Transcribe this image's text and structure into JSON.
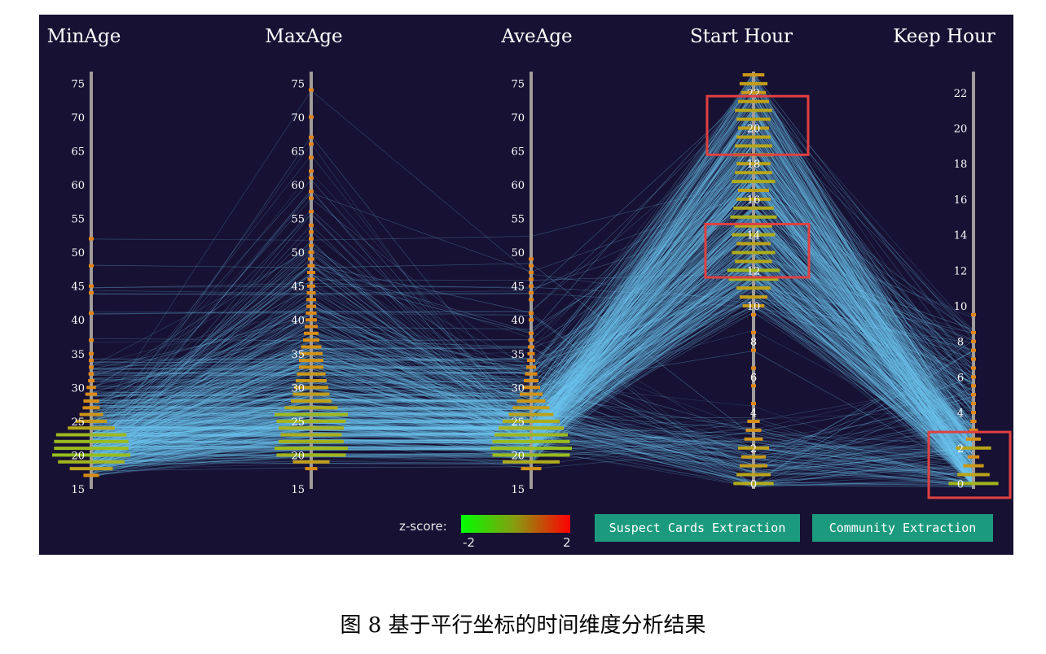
{
  "chart_data": {
    "type": "parallel-coordinates",
    "axes": [
      {
        "name": "MinAge",
        "range": [
          15,
          76
        ],
        "ticks": [
          15,
          20,
          25,
          30,
          35,
          40,
          45,
          50,
          55,
          60,
          65,
          70,
          75
        ],
        "tick_side": "left"
      },
      {
        "name": "MaxAge",
        "range": [
          15,
          76
        ],
        "ticks": [
          15,
          20,
          25,
          30,
          35,
          40,
          45,
          50,
          55,
          60,
          65,
          70,
          75
        ],
        "tick_side": "left"
      },
      {
        "name": "AveAge",
        "range": [
          15,
          76
        ],
        "ticks": [
          15,
          20,
          25,
          30,
          35,
          40,
          45,
          50,
          55,
          60,
          65,
          70,
          75
        ],
        "tick_side": "left"
      },
      {
        "name": "Start Hour",
        "range": [
          -0.3,
          23
        ],
        "ticks": [
          0,
          2,
          4,
          6,
          8,
          10,
          12,
          14,
          16,
          18,
          20,
          22
        ],
        "tick_side": "center"
      },
      {
        "name": "Keep Hour",
        "range": [
          -0.3,
          23
        ],
        "ticks": [
          0,
          2,
          4,
          6,
          8,
          10,
          12,
          14,
          16,
          18,
          20,
          22
        ],
        "tick_side": "left"
      }
    ],
    "histograms": [
      [
        [
          17,
          0.2
        ],
        [
          18,
          0.55
        ],
        [
          19,
          0.85
        ],
        [
          20,
          1.0
        ],
        [
          21,
          0.95
        ],
        [
          22,
          0.95
        ],
        [
          23,
          0.9
        ],
        [
          24,
          0.6
        ],
        [
          25,
          0.4
        ],
        [
          26,
          0.3
        ],
        [
          27,
          0.22
        ],
        [
          28,
          0.2
        ],
        [
          29,
          0.15
        ],
        [
          30,
          0.12
        ],
        [
          31,
          0.08
        ],
        [
          32,
          0.07
        ],
        [
          33,
          0.06
        ],
        [
          34,
          0.06
        ],
        [
          35,
          0.05
        ],
        [
          37,
          0.04
        ],
        [
          41,
          0.04
        ],
        [
          44,
          0.03
        ],
        [
          45,
          0.03
        ],
        [
          48,
          0.03
        ],
        [
          52,
          0.02
        ]
      ],
      [
        [
          18,
          0.15
        ],
        [
          19,
          0.45
        ],
        [
          20,
          0.85
        ],
        [
          21,
          0.9
        ],
        [
          22,
          0.8
        ],
        [
          23,
          0.75
        ],
        [
          24,
          0.8
        ],
        [
          25,
          0.85
        ],
        [
          26,
          0.9
        ],
        [
          27,
          0.65
        ],
        [
          28,
          0.5
        ],
        [
          29,
          0.45
        ],
        [
          30,
          0.42
        ],
        [
          31,
          0.38
        ],
        [
          32,
          0.35
        ],
        [
          33,
          0.3
        ],
        [
          34,
          0.3
        ],
        [
          35,
          0.28
        ],
        [
          36,
          0.25
        ],
        [
          37,
          0.2
        ],
        [
          38,
          0.18
        ],
        [
          39,
          0.16
        ],
        [
          40,
          0.14
        ],
        [
          41,
          0.13
        ],
        [
          42,
          0.12
        ],
        [
          43,
          0.12
        ],
        [
          44,
          0.11
        ],
        [
          45,
          0.1
        ],
        [
          46,
          0.09
        ],
        [
          47,
          0.1
        ],
        [
          48,
          0.09
        ],
        [
          49,
          0.08
        ],
        [
          50,
          0.07
        ],
        [
          51,
          0.06
        ],
        [
          52,
          0.05
        ],
        [
          53,
          0.05
        ],
        [
          54,
          0.04
        ],
        [
          56,
          0.04
        ],
        [
          58,
          0.04
        ],
        [
          59,
          0.03
        ],
        [
          61,
          0.03
        ],
        [
          62,
          0.03
        ],
        [
          64,
          0.03
        ],
        [
          66,
          0.03
        ],
        [
          67,
          0.02
        ],
        [
          70,
          0.02
        ],
        [
          74,
          0.02
        ]
      ],
      [
        [
          18,
          0.25
        ],
        [
          19,
          0.7
        ],
        [
          20,
          0.95
        ],
        [
          21,
          1.0
        ],
        [
          22,
          0.95
        ],
        [
          23,
          0.9
        ],
        [
          24,
          0.8
        ],
        [
          25,
          0.7
        ],
        [
          26,
          0.55
        ],
        [
          27,
          0.45
        ],
        [
          28,
          0.35
        ],
        [
          29,
          0.28
        ],
        [
          30,
          0.22
        ],
        [
          31,
          0.18
        ],
        [
          32,
          0.15
        ],
        [
          33,
          0.12
        ],
        [
          34,
          0.1
        ],
        [
          35,
          0.09
        ],
        [
          36,
          0.08
        ],
        [
          37,
          0.07
        ],
        [
          38,
          0.06
        ],
        [
          40,
          0.06
        ],
        [
          41,
          0.05
        ],
        [
          43,
          0.05
        ],
        [
          44,
          0.04
        ],
        [
          45,
          0.04
        ],
        [
          46,
          0.03
        ],
        [
          47,
          0.03
        ],
        [
          48,
          0.03
        ],
        [
          49,
          0.02
        ]
      ],
      [
        [
          0,
          0.65
        ],
        [
          0.5,
          0.55
        ],
        [
          1,
          0.45
        ],
        [
          1.5,
          0.4
        ],
        [
          2,
          0.5
        ],
        [
          2.5,
          0.3
        ],
        [
          3,
          0.25
        ],
        [
          3.5,
          0.2
        ],
        [
          4.5,
          0.05
        ],
        [
          5.5,
          0.05
        ],
        [
          6.5,
          0.05
        ],
        [
          7.5,
          0.04
        ],
        [
          8.5,
          0.04
        ],
        [
          9.5,
          0.06
        ],
        [
          10,
          0.35
        ],
        [
          10.5,
          0.45
        ],
        [
          11,
          0.55
        ],
        [
          11.5,
          0.8
        ],
        [
          12,
          0.85
        ],
        [
          12.5,
          0.6
        ],
        [
          13,
          0.7
        ],
        [
          13.5,
          0.55
        ],
        [
          14,
          0.7
        ],
        [
          14.5,
          0.6
        ],
        [
          15,
          0.75
        ],
        [
          15.5,
          0.65
        ],
        [
          16,
          0.55
        ],
        [
          16.5,
          0.5
        ],
        [
          17,
          0.7
        ],
        [
          17.5,
          0.6
        ],
        [
          18,
          0.55
        ],
        [
          18.5,
          0.65
        ],
        [
          19,
          0.6
        ],
        [
          19.5,
          0.55
        ],
        [
          20,
          0.5
        ],
        [
          20.5,
          0.55
        ],
        [
          21,
          0.6
        ],
        [
          21.5,
          0.5
        ],
        [
          22,
          0.4
        ],
        [
          22.5,
          0.45
        ],
        [
          23,
          0.35
        ]
      ],
      [
        [
          0,
          0.85
        ],
        [
          0.5,
          0.55
        ],
        [
          1,
          0.35
        ],
        [
          1.5,
          0.2
        ],
        [
          2,
          0.6
        ],
        [
          2.5,
          0.25
        ],
        [
          3,
          0.15
        ],
        [
          3.5,
          0.1
        ],
        [
          4,
          0.08
        ],
        [
          4.5,
          0.07
        ],
        [
          5,
          0.06
        ],
        [
          5.5,
          0.06
        ],
        [
          6,
          0.05
        ],
        [
          6.5,
          0.05
        ],
        [
          7,
          0.04
        ],
        [
          7.5,
          0.04
        ],
        [
          8,
          0.04
        ],
        [
          8.5,
          0.04
        ],
        [
          9.5,
          0.04
        ]
      ]
    ],
    "highlight_boxes": [
      {
        "axis": "Start Hour",
        "range": [
          18.5,
          21.8
        ]
      },
      {
        "axis": "Start Hour",
        "range": [
          11.6,
          14.6
        ]
      },
      {
        "axis": "Keep Hour",
        "range": [
          -0.8,
          2.9
        ]
      }
    ],
    "legend": {
      "title": "z-score:",
      "min": "-2",
      "max": "2",
      "colors": [
        "#00ff00",
        "#ff0000"
      ]
    },
    "colors": {
      "background": "#171133",
      "lines": "#6ec8f2",
      "axis": "#a09c9a",
      "highlight_box": "#e04040"
    }
  },
  "buttons": {
    "suspect": "Suspect Cards Extraction",
    "community": "Community Extraction"
  },
  "caption": "图 8  基于平行坐标的时间维度分析结果"
}
